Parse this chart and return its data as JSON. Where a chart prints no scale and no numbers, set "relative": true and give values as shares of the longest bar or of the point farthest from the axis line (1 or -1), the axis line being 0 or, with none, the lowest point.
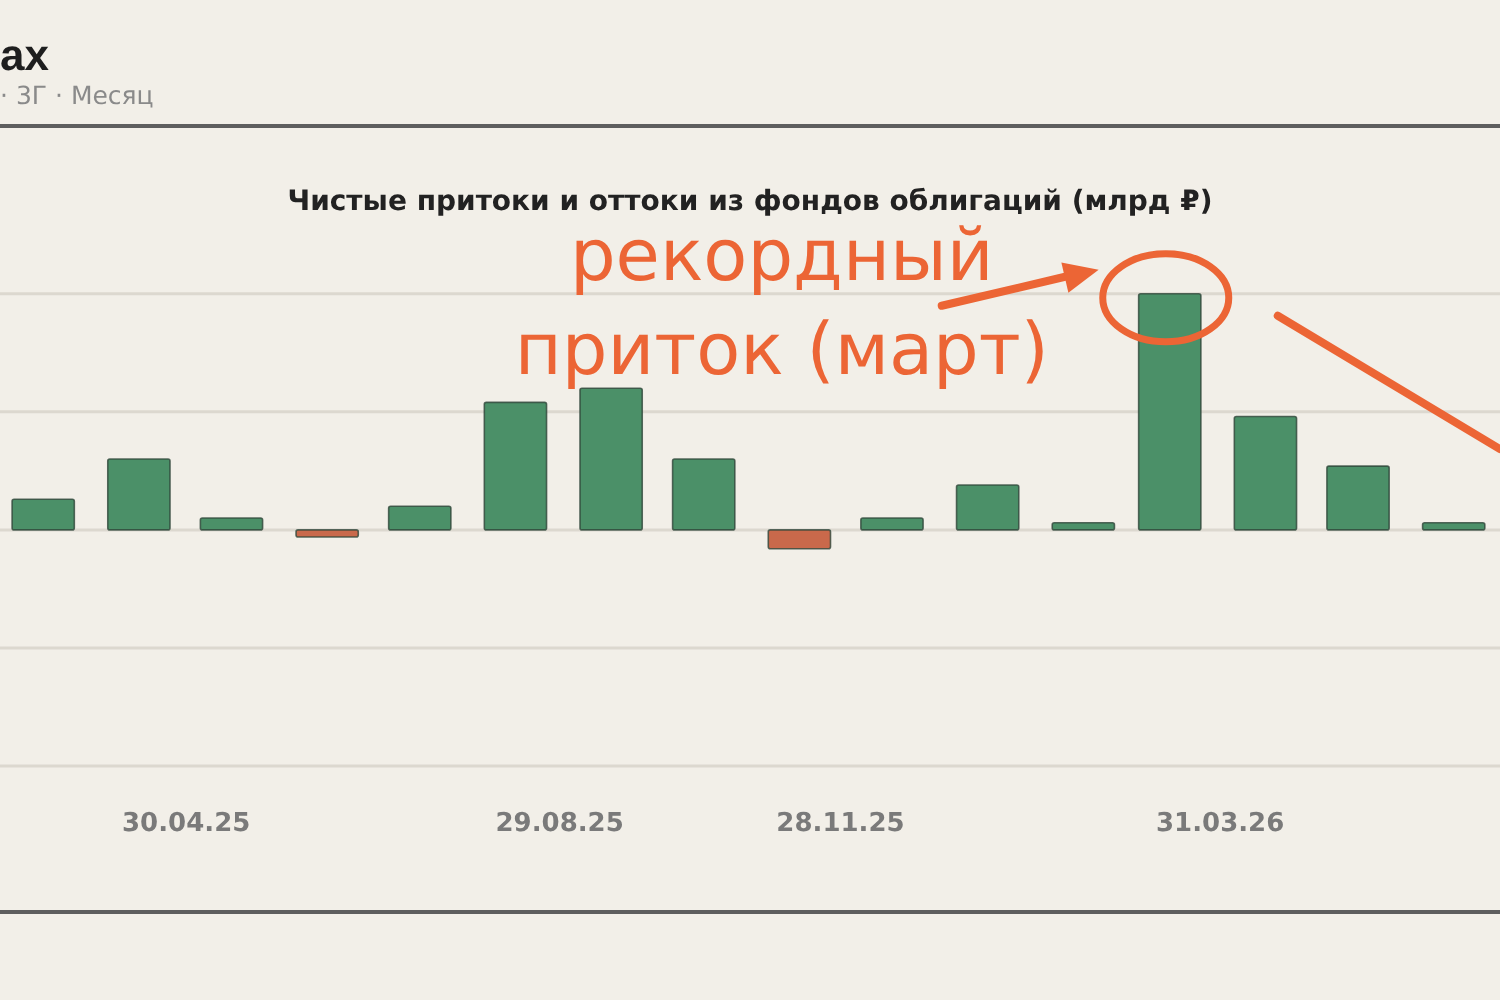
{
  "chart_data": {
    "type": "bar",
    "title": "Чистые притоки и оттоки из фондов облигаций (млрд ₽)",
    "x": [
      "2025-03-15",
      "2025-04-15",
      "2025-05-15",
      "2025-06-15",
      "2025-07-15",
      "2025-08-15",
      "2025-09-15",
      "2025-10-15",
      "2025-11-15",
      "2025-12-15",
      "2026-01-15",
      "2026-02-15",
      "2026-03-15",
      "2026-04-15",
      "2026-05-15",
      "2026-06-15"
    ],
    "values": [
      0.13,
      0.3,
      0.05,
      -0.03,
      0.1,
      0.54,
      0.6,
      0.3,
      -0.08,
      0.05,
      0.19,
      0.03,
      1,
      0.48,
      0.27,
      0.03
    ],
    "colors": [
      "#4b9068",
      "#4b9068",
      "#4b9068",
      "#c9694b",
      "#4b9068",
      "#4b9068",
      "#4b9068",
      "#4b9068",
      "#c9694b",
      "#4b9068",
      "#4b9068",
      "#4b9068",
      "#4b9068",
      "#4b9068",
      "#4b9068",
      "#4b9068"
    ],
    "relative": true,
    "xlim": [
      "2025-03-01",
      "2026-06-30"
    ],
    "xticks": [
      {
        "value": "2025-04-30",
        "label": "30.04.25"
      },
      {
        "value": "2025-08-29",
        "label": "29.08.25"
      },
      {
        "value": "2025-11-28",
        "label": "28.11.25"
      },
      {
        "value": "2026-03-31",
        "label": "31.03.26"
      }
    ],
    "ref_lines": [
      {
        "axis": "y",
        "value": 1,
        "color": "#dcd8cf"
      },
      {
        "axis": "y",
        "value": 0.5,
        "color": "#dcd8cf"
      },
      {
        "axis": "y",
        "value": 0,
        "color": "#dcd8cf"
      },
      {
        "axis": "y",
        "value": -0.5,
        "color": "#dcd8cf"
      },
      {
        "axis": "y",
        "value": -1,
        "color": "#dcd8cf"
      }
    ],
    "annotations": [
      "ах",
      "· 3Г · Месяц",
      {
        "text": "рекордный приток (март)",
        "x": "2026-03-15",
        "y": 1
      }
    ]
  }
}
